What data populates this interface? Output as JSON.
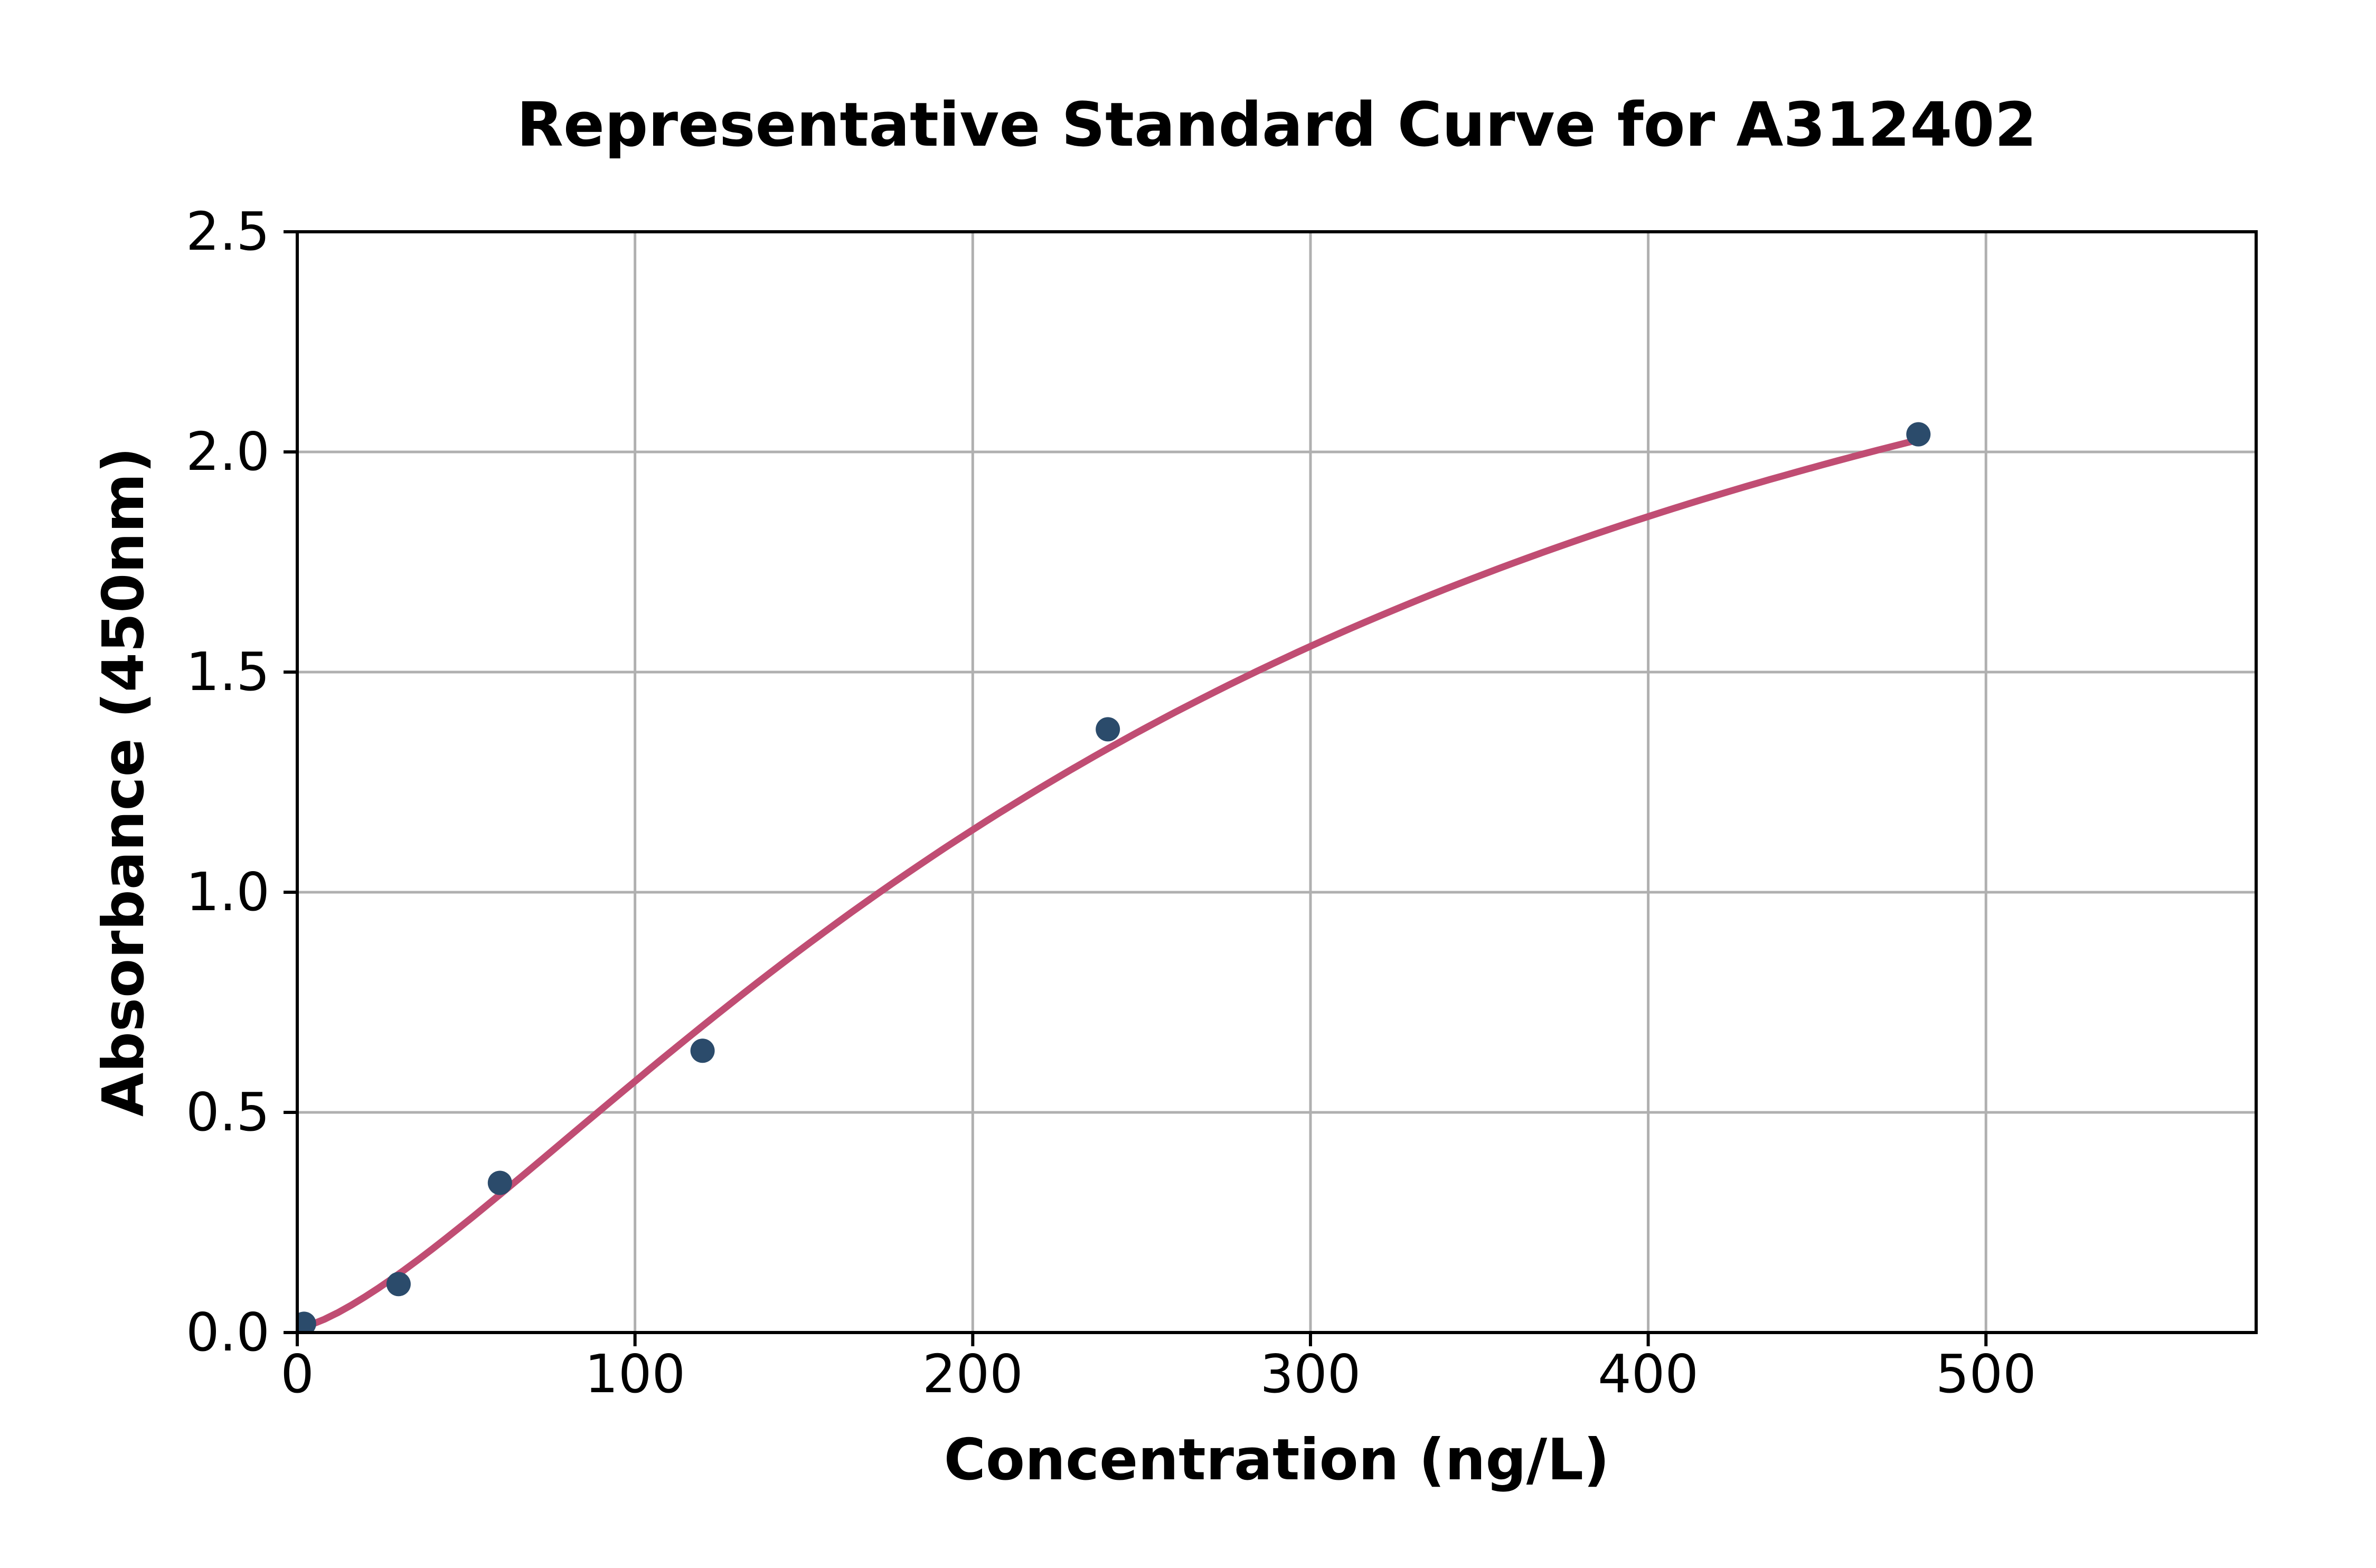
{
  "chart_data": {
    "type": "scatter",
    "title": "Representative Standard Curve for A312402",
    "xlabel": "Concentration (ng/L)",
    "ylabel": "Absorbance (450nm)",
    "xlim": [
      0,
      580
    ],
    "ylim": [
      0,
      2.5
    ],
    "xticks": [
      0,
      100,
      200,
      300,
      400,
      500
    ],
    "xticklabels": [
      "0",
      "100",
      "200",
      "300",
      "400",
      "500"
    ],
    "yticks": [
      0,
      0.5,
      1.0,
      1.5,
      2.0,
      2.5
    ],
    "yticklabels": [
      "0.0",
      "0.5",
      "1.0",
      "1.5",
      "2.0",
      "2.5"
    ],
    "grid": true,
    "legend": false,
    "points": {
      "x": [
        2,
        30,
        60,
        120,
        240,
        480
      ],
      "y": [
        0.02,
        0.11,
        0.34,
        0.64,
        1.37,
        2.04
      ]
    },
    "fit_curve": {
      "model": "4PL",
      "a": 0.01,
      "d": 3.0,
      "c": 285,
      "b": 1.4,
      "x_start": 0,
      "x_end": 480
    },
    "colors": {
      "curve": "#c04d73",
      "points": "#2b4b6b",
      "grid": "#b0b0b0",
      "axis": "#000000",
      "background": "#ffffff"
    }
  }
}
